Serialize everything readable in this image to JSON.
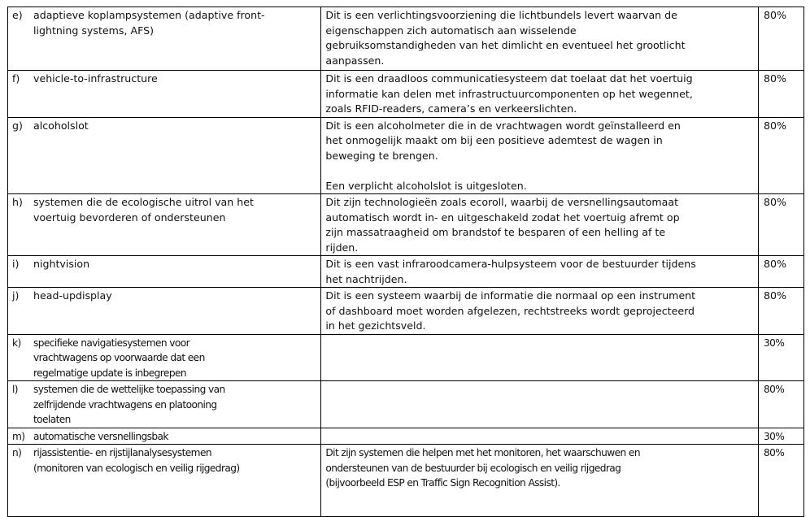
{
  "rows": [
    {
      "label": "e)",
      "name": "adaptieve koplampsystemen (adaptive front-\nlightning systems, AFS)",
      "description": "Dit is een verlichtingsvoorziening die lichtbundels levert waarvan de\neigenschappen zich automatisch aan wisselende\ngebruiksomstandigheden van het dimlicht en eventueel het grootlicht\naanpassen.",
      "percentage": "80%"
    },
    {
      "label": "f)",
      "name": "vehicle-to-infrastructure",
      "description": "Dit is een draadloos communicatiesysteem dat toelaat dat het voertuig\ninformatie kan delen met infrastructuurcomponenten op het wegennet,\nzoals RFID-readers, camera’s en verkeerslichten.",
      "percentage": "80%"
    },
    {
      "label": "g)",
      "name": "alcoholslot",
      "description": "Dit is een alcoholmeter die in de vrachtwagen wordt geïnstalleerd en\nhet onmogelijk maakt om bij een positieve ademtest de wagen in\nbeweging te brengen.\n\nEen verplicht alcoholslot is uitgesloten.",
      "percentage": "80%"
    },
    {
      "label": "h)",
      "name": "systemen die de ecologische uitrol van het\nvoertuig bevorderen of ondersteunen",
      "description": "Dit zijn technologieën zoals ecoroll, waarbij de versnellingsautomaat\nautomatisch wordt in- en uitgeschakeld zodat het voertuig afremt op\nzijn massatraagheid om brandstof te besparen of een helling af te\nrijden.",
      "percentage": "80%"
    },
    {
      "label": "i)",
      "name": "nightvision",
      "description": "Dit is een vast infraroodcamera-hulpsysteem voor de bestuurder tijdens\nhet nachtrijden.",
      "percentage": "80%"
    },
    {
      "label": "j)",
      "name": "head-updisplay",
      "description": "Dit is een systeem waarbij de informatie die normaal op een instrument\nof dashboard moet worden afgelezen, rechtstreeks wordt geprojecteerd\nin het gezichtsveld.",
      "percentage": "80%"
    },
    {
      "label": "k)",
      "name": "specifieke navigatiesystemen voor\nvrachtwagens op voorwaarde dat een\nregelmatige update is inbegrepen",
      "description": "",
      "percentage": "30%"
    },
    {
      "label": "l)",
      "name": "systemen die de wettelijke toepassing van\nzelfrijdende vrachtwagens en platooning\ntoelaten",
      "description": "",
      "percentage": "80%"
    },
    {
      "label": "m)",
      "name": "automatische versnellingsbak",
      "description": "",
      "percentage": "30%"
    },
    {
      "label": "n)",
      "name": "rijassistentie- en rijstijlanalysesystemen\n(monitoren van ecologisch en veilig rijgedrag)",
      "description": "Dit zijn systemen die helpen met het monitoren, het waarschuwen en\nondersteunen van de bestuurder bij ecologisch en veilig rijgedrag\n(bijvoorbeeld ESP en Traffic Sign Recognition Assist).",
      "percentage": "80%"
    }
  ]
}
